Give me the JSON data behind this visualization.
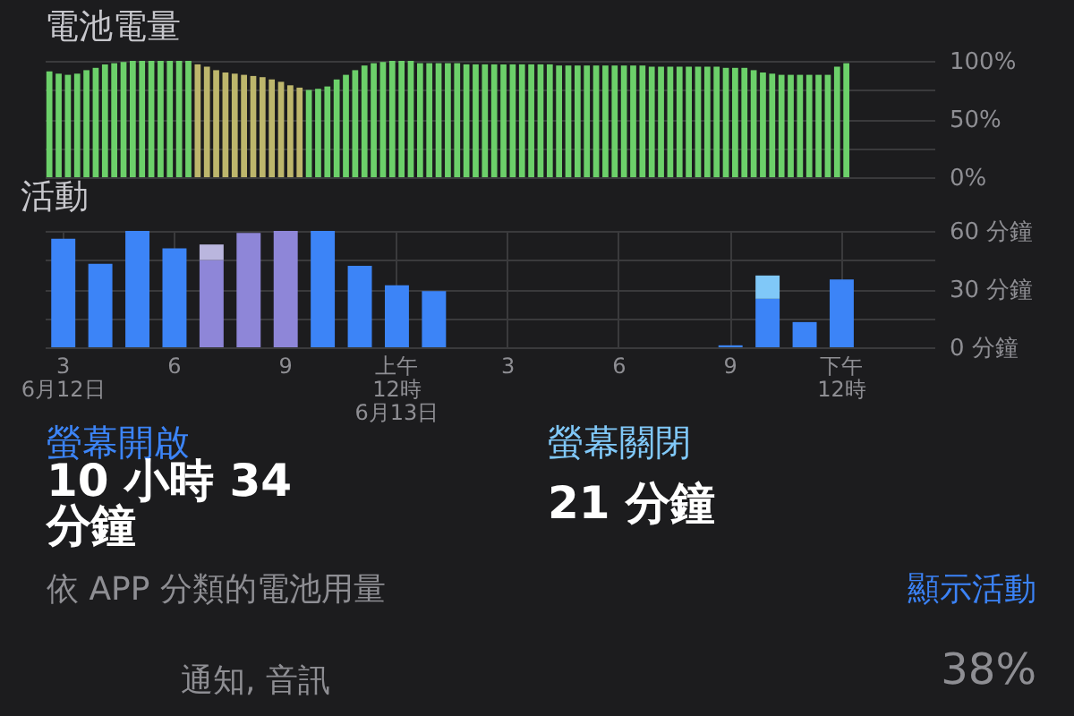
{
  "chart_data": [
    {
      "type": "bar",
      "title": "電池電量",
      "categories": [
        null,
        null,
        null,
        null,
        null,
        null,
        null,
        null,
        null,
        null,
        null,
        null,
        null,
        null,
        null,
        null,
        null,
        null,
        null,
        null,
        null,
        null,
        null,
        null,
        null,
        null,
        null,
        null,
        null,
        null,
        null,
        null,
        null,
        null,
        null,
        null,
        null,
        null,
        null,
        null,
        null,
        null,
        null,
        null,
        null,
        null,
        null,
        null,
        null,
        null,
        null,
        null,
        null,
        null,
        null,
        null,
        null,
        null,
        null,
        null,
        null,
        null,
        null,
        null,
        null,
        null,
        null,
        null,
        null,
        null,
        null,
        null,
        null,
        null,
        null,
        null,
        null,
        null,
        null,
        null,
        null,
        null,
        null,
        null,
        null,
        null,
        null,
        null,
        null,
        null,
        null,
        null,
        null,
        null,
        null,
        null
      ],
      "values": [
        91,
        89,
        88,
        89,
        92,
        94,
        97,
        98,
        99,
        100,
        100,
        100,
        100,
        100,
        100,
        100,
        97,
        95,
        92,
        90,
        89,
        88,
        87,
        86,
        84,
        82,
        79,
        77,
        75,
        76,
        78,
        84,
        88,
        92,
        96,
        98,
        99,
        100,
        100,
        100,
        98,
        98,
        98,
        98,
        98,
        97,
        97,
        97,
        97,
        97,
        97,
        97,
        97,
        97,
        97,
        96,
        96,
        96,
        96,
        96,
        96,
        96,
        96,
        96,
        96,
        95,
        95,
        95,
        95,
        95,
        95,
        95,
        95,
        94,
        94,
        94,
        92,
        90,
        89,
        88,
        88,
        88,
        88,
        88,
        88,
        95,
        98,
        null,
        null,
        null,
        null,
        null,
        null,
        null,
        null,
        null
      ],
      "colors": [
        "#6cd06a",
        "#6cd06a",
        "#6cd06a",
        "#6cd06a",
        "#6cd06a",
        "#6cd06a",
        "#6cd06a",
        "#6cd06a",
        "#6cd06a",
        "#6cd06a",
        "#6cd06a",
        "#6cd06a",
        "#6cd06a",
        "#6cd06a",
        "#6cd06a",
        "#6cd06a",
        "#bdb66c",
        "#bdb66c",
        "#bdb66c",
        "#bdb66c",
        "#bdb66c",
        "#bdb66c",
        "#bdb66c",
        "#bdb66c",
        "#bdb66c",
        "#bdb66c",
        "#bdb66c",
        "#bdb66c",
        "#6cd06a",
        "#6cd06a",
        "#6cd06a",
        "#6cd06a",
        "#6cd06a",
        "#6cd06a",
        "#6cd06a",
        "#6cd06a",
        "#6cd06a",
        "#6cd06a",
        "#6cd06a",
        "#6cd06a",
        "#6cd06a",
        "#6cd06a",
        "#6cd06a",
        "#6cd06a",
        "#6cd06a",
        "#6cd06a",
        "#6cd06a",
        "#6cd06a",
        "#6cd06a",
        "#6cd06a",
        "#6cd06a",
        "#6cd06a",
        "#6cd06a",
        "#6cd06a",
        "#6cd06a",
        "#6cd06a",
        "#6cd06a",
        "#6cd06a",
        "#6cd06a",
        "#6cd06a",
        "#6cd06a",
        "#6cd06a",
        "#6cd06a",
        "#6cd06a",
        "#6cd06a",
        "#6cd06a",
        "#6cd06a",
        "#6cd06a",
        "#6cd06a",
        "#6cd06a",
        "#6cd06a",
        "#6cd06a",
        "#6cd06a",
        "#6cd06a",
        "#6cd06a",
        "#6cd06a",
        "#6cd06a",
        "#6cd06a",
        "#6cd06a",
        "#6cd06a",
        "#6cd06a",
        "#6cd06a",
        "#6cd06a",
        "#6cd06a",
        "#6cd06a",
        "#6cd06a",
        "#6cd06a",
        null,
        null,
        null,
        null,
        null,
        null,
        null,
        null,
        null
      ],
      "ylim": [
        0,
        100
      ],
      "yticks": [
        {
          "value": 0,
          "label": "0%"
        },
        {
          "value": 25,
          "label": null
        },
        {
          "value": 50,
          "label": "50%"
        },
        {
          "value": 75,
          "label": null
        },
        {
          "value": 100,
          "label": "100%"
        }
      ],
      "grid": "y",
      "tick_labels": "y"
    },
    {
      "type": "bar",
      "title": "活動",
      "stacked": true,
      "categories": [
        "3\n6月12日",
        null,
        null,
        "6",
        null,
        null,
        "9",
        null,
        null,
        "上午\n12時\n6月13日",
        null,
        null,
        "3",
        null,
        null,
        "6",
        null,
        null,
        "9",
        null,
        null,
        "下午\n12時",
        null,
        null
      ],
      "series": [
        {
          "name": "螢幕開啟",
          "color": "#3c84f7",
          "values": [
            56,
            43,
            60,
            51,
            45,
            59,
            60,
            60,
            42,
            32,
            29,
            null,
            null,
            null,
            null,
            null,
            null,
            null,
            1,
            25,
            13,
            35,
            null,
            null
          ],
          "colors": [
            "#3c84f7",
            "#3c84f7",
            "#3c84f7",
            "#3c84f7",
            "#8e86d8",
            "#8e86d8",
            "#8e86d8",
            "#3c84f7",
            "#3c84f7",
            "#3c84f7",
            "#3c84f7",
            null,
            null,
            null,
            null,
            null,
            null,
            null,
            "#3c84f7",
            "#3c84f7",
            "#3c84f7",
            "#3c84f7",
            null,
            null
          ]
        },
        {
          "name": "螢幕關閉",
          "color": "#80c8f8",
          "values": [
            null,
            null,
            null,
            null,
            8,
            null,
            null,
            null,
            null,
            null,
            null,
            null,
            null,
            null,
            null,
            null,
            null,
            null,
            null,
            12,
            null,
            null,
            null,
            null
          ],
          "colors": [
            null,
            null,
            null,
            null,
            "#bab6de",
            null,
            null,
            null,
            null,
            null,
            null,
            null,
            null,
            null,
            null,
            null,
            null,
            null,
            null,
            "#80c8f8",
            null,
            null,
            null,
            null
          ]
        }
      ],
      "ylim": [
        0,
        60
      ],
      "yticks": [
        {
          "value": 0,
          "label": "0 分鐘"
        },
        {
          "value": 15,
          "label": null
        },
        {
          "value": 30,
          "label": "30 分鐘"
        },
        {
          "value": 45,
          "label": null
        },
        {
          "value": 60,
          "label": "60 分鐘"
        }
      ],
      "grid": true,
      "legend": "bottom",
      "annotations": [
        "10 小時 34 分鐘",
        "21 分鐘"
      ]
    },
    {
      "type": "other",
      "annotations": [
        "依 APP 分類的電池用量",
        "顯示活動",
        "通知, 音訊",
        "38%"
      ]
    }
  ]
}
